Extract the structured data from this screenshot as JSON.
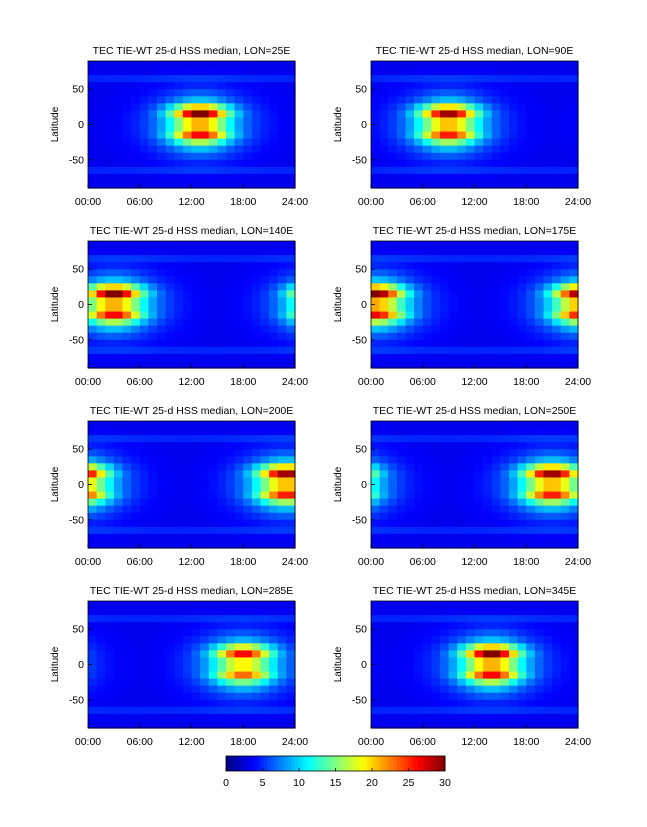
{
  "chart_data": {
    "type": "heatmap",
    "colorbar": {
      "colormap": "jet",
      "range": [
        0,
        30
      ],
      "ticks": [
        "0",
        "5",
        "10",
        "15",
        "20",
        "25",
        "30"
      ]
    },
    "panels": [
      {
        "title": "TEC  TIE-WT 25-d HSS median, LON=25E",
        "ylabel": "Latitude",
        "xticks": [
          "00:00",
          "06:00",
          "12:00",
          "18:00",
          "24:00"
        ],
        "yticks": [
          "50",
          "0",
          "-50"
        ],
        "xlim": [
          0,
          24
        ],
        "ylim": [
          -90,
          90
        ],
        "peak_hour": 13,
        "peak_value": 25,
        "lobe_width_hours": 3.2
      },
      {
        "title": "TEC  TIE-WT 25-d HSS median, LON=90E",
        "ylabel": "Latitude",
        "xticks": [
          "00:00",
          "06:00",
          "12:00",
          "18:00",
          "24:00"
        ],
        "yticks": [
          "50",
          "0",
          "-50"
        ],
        "xlim": [
          0,
          24
        ],
        "ylim": [
          -90,
          90
        ],
        "peak_hour": 9,
        "peak_value": 24,
        "lobe_width_hours": 3.2
      },
      {
        "title": "TEC  TIE-WT 25-d HSS median, LON=140E",
        "ylabel": "Latitude",
        "xticks": [
          "00:00",
          "06:00",
          "12:00",
          "18:00",
          "24:00"
        ],
        "yticks": [
          "50",
          "0",
          "-50"
        ],
        "xlim": [
          0,
          24
        ],
        "ylim": [
          -90,
          90
        ],
        "peak_hour": 3,
        "peak_value": 25,
        "lobe_width_hours": 3.2
      },
      {
        "title": "TEC  TIE-WT 25-d HSS median, LON=175E",
        "ylabel": "Latitude",
        "xticks": [
          "00:00",
          "06:00",
          "12:00",
          "18:00",
          "24:00"
        ],
        "yticks": [
          "50",
          "0",
          "-50"
        ],
        "xlim": [
          0,
          24
        ],
        "ylim": [
          -90,
          90
        ],
        "peak_hour": 0.5,
        "peak_value": 25,
        "lobe_width_hours": 3.2
      },
      {
        "title": "TEC  TIE-WT 25-d HSS median, LON=200E",
        "ylabel": "Latitude",
        "xticks": [
          "00:00",
          "06:00",
          "12:00",
          "18:00",
          "24:00"
        ],
        "yticks": [
          "50",
          "0",
          "-50"
        ],
        "xlim": [
          0,
          24
        ],
        "ylim": [
          -90,
          90
        ],
        "peak_hour": 23,
        "peak_value": 24,
        "lobe_width_hours": 3.2
      },
      {
        "title": "TEC  TIE-WT 25-d HSS median, LON=250E",
        "ylabel": "Latitude",
        "xticks": [
          "00:00",
          "06:00",
          "12:00",
          "18:00",
          "24:00"
        ],
        "yticks": [
          "50",
          "0",
          "-50"
        ],
        "xlim": [
          0,
          24
        ],
        "ylim": [
          -90,
          90
        ],
        "peak_hour": 21,
        "peak_value": 24,
        "lobe_width_hours": 3.2
      },
      {
        "title": "TEC  TIE-WT 25-d HSS median, LON=285E",
        "ylabel": "Latitude",
        "xticks": [
          "00:00",
          "06:00",
          "12:00",
          "18:00",
          "24:00"
        ],
        "yticks": [
          "50",
          "0",
          "-50"
        ],
        "xlim": [
          0,
          24
        ],
        "ylim": [
          -90,
          90
        ],
        "peak_hour": 18,
        "peak_value": 21,
        "lobe_width_hours": 3.2
      },
      {
        "title": "TEC  TIE-WT 25-d HSS median, LON=345E",
        "ylabel": "Latitude",
        "xticks": [
          "00:00",
          "06:00",
          "12:00",
          "18:00",
          "24:00"
        ],
        "yticks": [
          "50",
          "0",
          "-50"
        ],
        "xlim": [
          0,
          24
        ],
        "ylim": [
          -90,
          90
        ],
        "peak_hour": 14,
        "peak_value": 25,
        "lobe_width_hours": 3.2
      }
    ]
  }
}
